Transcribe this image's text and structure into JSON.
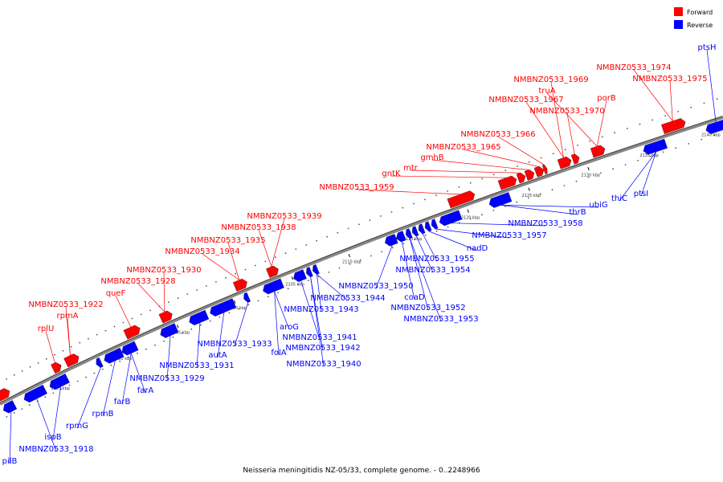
{
  "caption": "Neisseria meningitidis NZ-05/33, complete genome. - 0..2248966",
  "legend": [
    {
      "label": "Forward",
      "color": "#ff0000"
    },
    {
      "label": "Reverse",
      "color": "#0000ff"
    }
  ],
  "colors": {
    "forward": "#ff0000",
    "reverse": "#0000ff",
    "backbone": "#888888"
  },
  "kbp_ticks": [
    "2085 kbp",
    "2090 kbp",
    "2095 kbp",
    "2100 kbp",
    "2105 kbp",
    "2110 kbp",
    "2115 kbp",
    "2120 kbp",
    "2125 kbp",
    "2130 kbp",
    "2135 kbp",
    "2140 kbp"
  ],
  "forward_labels": [
    "rplU",
    "rpmA",
    "NMBNZ0533_1922",
    "queF",
    "NMBNZ0533_1928",
    "NMBNZ0533_1930",
    "NMBNZ0533_1934",
    "NMBNZ0533_1935",
    "NMBNZ0533_1938",
    "NMBNZ0533_1939",
    "NMBNZ0533_1959",
    "gntK",
    "mtr",
    "gmhB",
    "NMBNZ0533_1965",
    "NMBNZ0533_1966",
    "NMBNZ0533_1970",
    "NMBNZ0533_1967",
    "truA",
    "NMBNZ0533_1969",
    "porB",
    "NMBNZ0533_1975",
    "NMBNZ0533_1974"
  ],
  "reverse_labels": [
    "pilB",
    "NMBNZ0533_1918",
    "ispB",
    "rpmG",
    "rpmB",
    "farB",
    "farA",
    "NMBNZ0533_1929",
    "NMBNZ0533_1931",
    "autA",
    "NMBNZ0533_1933",
    "folA",
    "aroG",
    "NMBNZ0533_1940",
    "NMBNZ0533_1942",
    "NMBNZ0533_1941",
    "NMBNZ0533_1943",
    "NMBNZ0533_1944",
    "NMBNZ0533_1950",
    "coaD",
    "NMBNZ0533_1953",
    "NMBNZ0533_1952",
    "NMBNZ0533_1954",
    "NMBNZ0533_1955",
    "nadD",
    "NMBNZ0533_1957",
    "NMBNZ0533_1958",
    "thrB",
    "ubiG",
    "thiC",
    "ptsI",
    "ptsH"
  ]
}
